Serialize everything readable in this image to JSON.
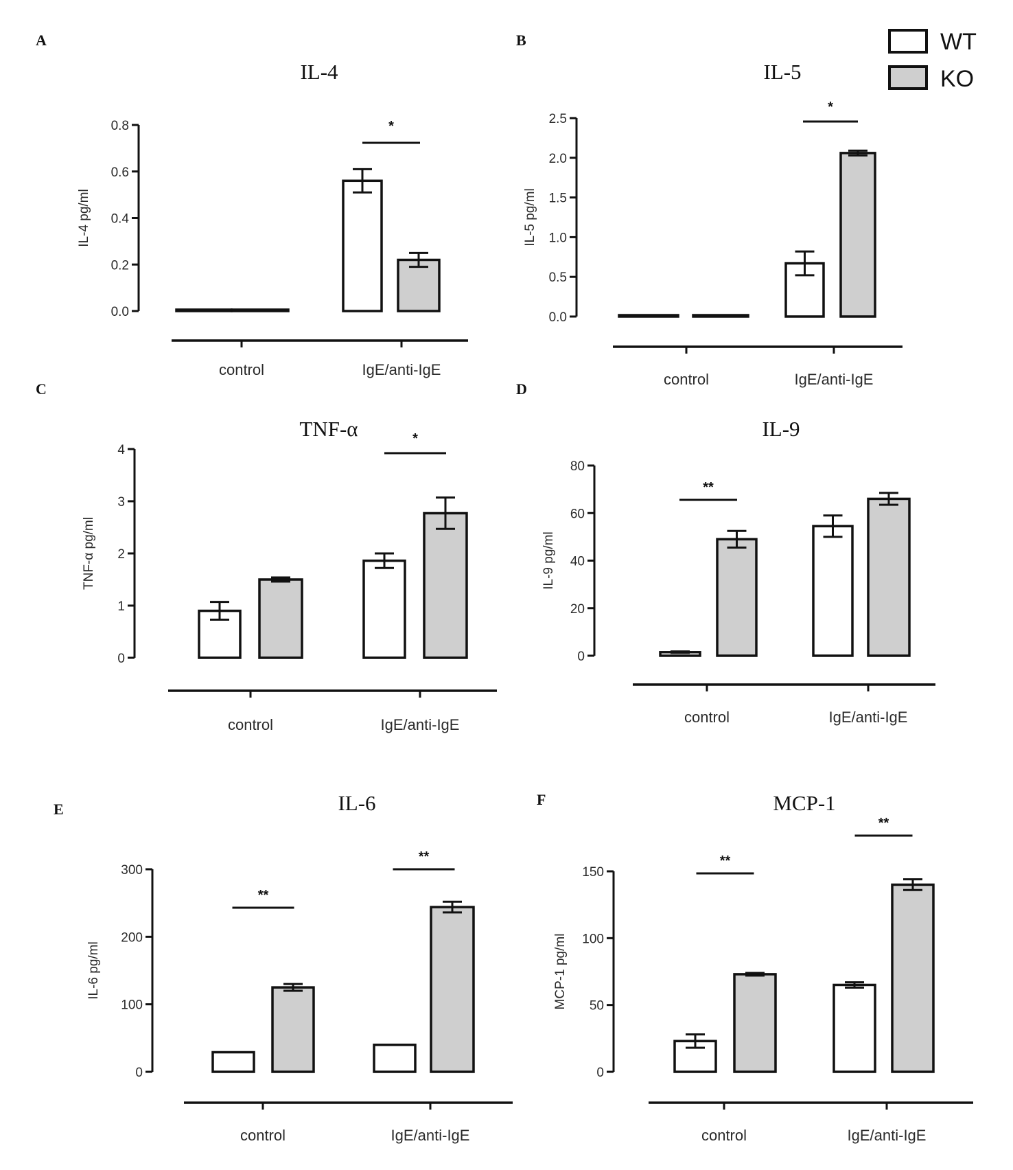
{
  "legend": {
    "entries": [
      {
        "label": "WT",
        "color": "#ffffff"
      },
      {
        "label": "KO",
        "color": "#cfcfcf"
      }
    ]
  },
  "colors": {
    "wt": "#ffffff",
    "ko": "#cfcfcf",
    "stroke": "#111111"
  },
  "chart_data": [
    {
      "panel": "A",
      "type": "bar",
      "title": "IL-4",
      "ylabel": "IL-4 pg/ml",
      "categories": [
        "control",
        "IgE/anti-IgE"
      ],
      "ylim": [
        0,
        0.8
      ],
      "yticks": [
        "0.0",
        "0.2",
        "0.4",
        "0.6",
        "0.8"
      ],
      "ytick_values": [
        0,
        0.2,
        0.4,
        0.6,
        0.8
      ],
      "series": [
        {
          "name": "WT",
          "values": [
            0.0,
            0.56
          ],
          "errors": [
            0.0,
            0.05
          ]
        },
        {
          "name": "KO",
          "values": [
            0.0,
            0.22
          ],
          "errors": [
            0.0,
            0.03
          ]
        }
      ],
      "significance": [
        {
          "category": 1,
          "label": "*"
        }
      ]
    },
    {
      "panel": "B",
      "type": "bar",
      "title": "IL-5",
      "ylabel": "IL-5 pg/ml",
      "categories": [
        "control",
        "IgE/anti-IgE"
      ],
      "ylim": [
        0,
        2.5
      ],
      "yticks": [
        "0.0",
        "0.5",
        "1.0",
        "1.5",
        "2.0",
        "2.5"
      ],
      "ytick_values": [
        0,
        0.5,
        1.0,
        1.5,
        2.0,
        2.5
      ],
      "series": [
        {
          "name": "WT",
          "values": [
            0.0,
            0.67
          ],
          "errors": [
            0.0,
            0.15
          ]
        },
        {
          "name": "KO",
          "values": [
            0.0,
            2.06
          ],
          "errors": [
            0.0,
            0.03
          ]
        }
      ],
      "significance": [
        {
          "category": 1,
          "label": "*"
        }
      ]
    },
    {
      "panel": "C",
      "type": "bar",
      "title": "TNF-α",
      "ylabel": "TNF-α pg/ml",
      "categories": [
        "control",
        "IgE/anti-IgE"
      ],
      "ylim": [
        0,
        4
      ],
      "yticks": [
        "0",
        "1",
        "2",
        "3",
        "4"
      ],
      "ytick_values": [
        0,
        1,
        2,
        3,
        4
      ],
      "series": [
        {
          "name": "WT",
          "values": [
            0.9,
            1.86
          ],
          "errors": [
            0.17,
            0.14
          ]
        },
        {
          "name": "KO",
          "values": [
            1.5,
            2.77
          ],
          "errors": [
            0.04,
            0.3
          ]
        }
      ],
      "significance": [
        {
          "category": 1,
          "label": "*"
        }
      ]
    },
    {
      "panel": "D",
      "type": "bar",
      "title": "IL-9",
      "ylabel": "IL-9 pg/ml",
      "categories": [
        "control",
        "IgE/anti-IgE"
      ],
      "ylim": [
        0,
        80
      ],
      "yticks": [
        "0",
        "20",
        "40",
        "60",
        "80"
      ],
      "ytick_values": [
        0,
        20,
        40,
        60,
        80
      ],
      "series": [
        {
          "name": "WT",
          "values": [
            1.5,
            54.5
          ],
          "errors": [
            0.3,
            4.5
          ]
        },
        {
          "name": "KO",
          "values": [
            49.0,
            66.0
          ],
          "errors": [
            3.5,
            2.5
          ]
        }
      ],
      "significance": [
        {
          "category": 0,
          "label": "**"
        }
      ]
    },
    {
      "panel": "E",
      "type": "bar",
      "title": "IL-6",
      "ylabel": "IL-6 pg/ml",
      "categories": [
        "control",
        "IgE/anti-IgE"
      ],
      "ylim": [
        0,
        300
      ],
      "yticks": [
        "0",
        "100",
        "200",
        "300"
      ],
      "ytick_values": [
        0,
        100,
        200,
        300
      ],
      "series": [
        {
          "name": "WT",
          "values": [
            29,
            40
          ],
          "errors": [
            0,
            0
          ]
        },
        {
          "name": "KO",
          "values": [
            125,
            244
          ],
          "errors": [
            5,
            8
          ]
        }
      ],
      "significance": [
        {
          "category": 0,
          "label": "**"
        },
        {
          "category": 1,
          "label": "**"
        }
      ]
    },
    {
      "panel": "F",
      "type": "bar",
      "title": "MCP-1",
      "ylabel": "MCP-1 pg/ml",
      "categories": [
        "control",
        "IgE/anti-IgE"
      ],
      "ylim": [
        0,
        150
      ],
      "yticks": [
        "0",
        "50",
        "100",
        "150"
      ],
      "ytick_values": [
        0,
        50,
        100,
        150
      ],
      "series": [
        {
          "name": "WT",
          "values": [
            23,
            65
          ],
          "errors": [
            5,
            2
          ]
        },
        {
          "name": "KO",
          "values": [
            73,
            140
          ],
          "errors": [
            1,
            4
          ]
        }
      ],
      "significance": [
        {
          "category": 0,
          "label": "**"
        },
        {
          "category": 1,
          "label": "**"
        }
      ]
    }
  ]
}
